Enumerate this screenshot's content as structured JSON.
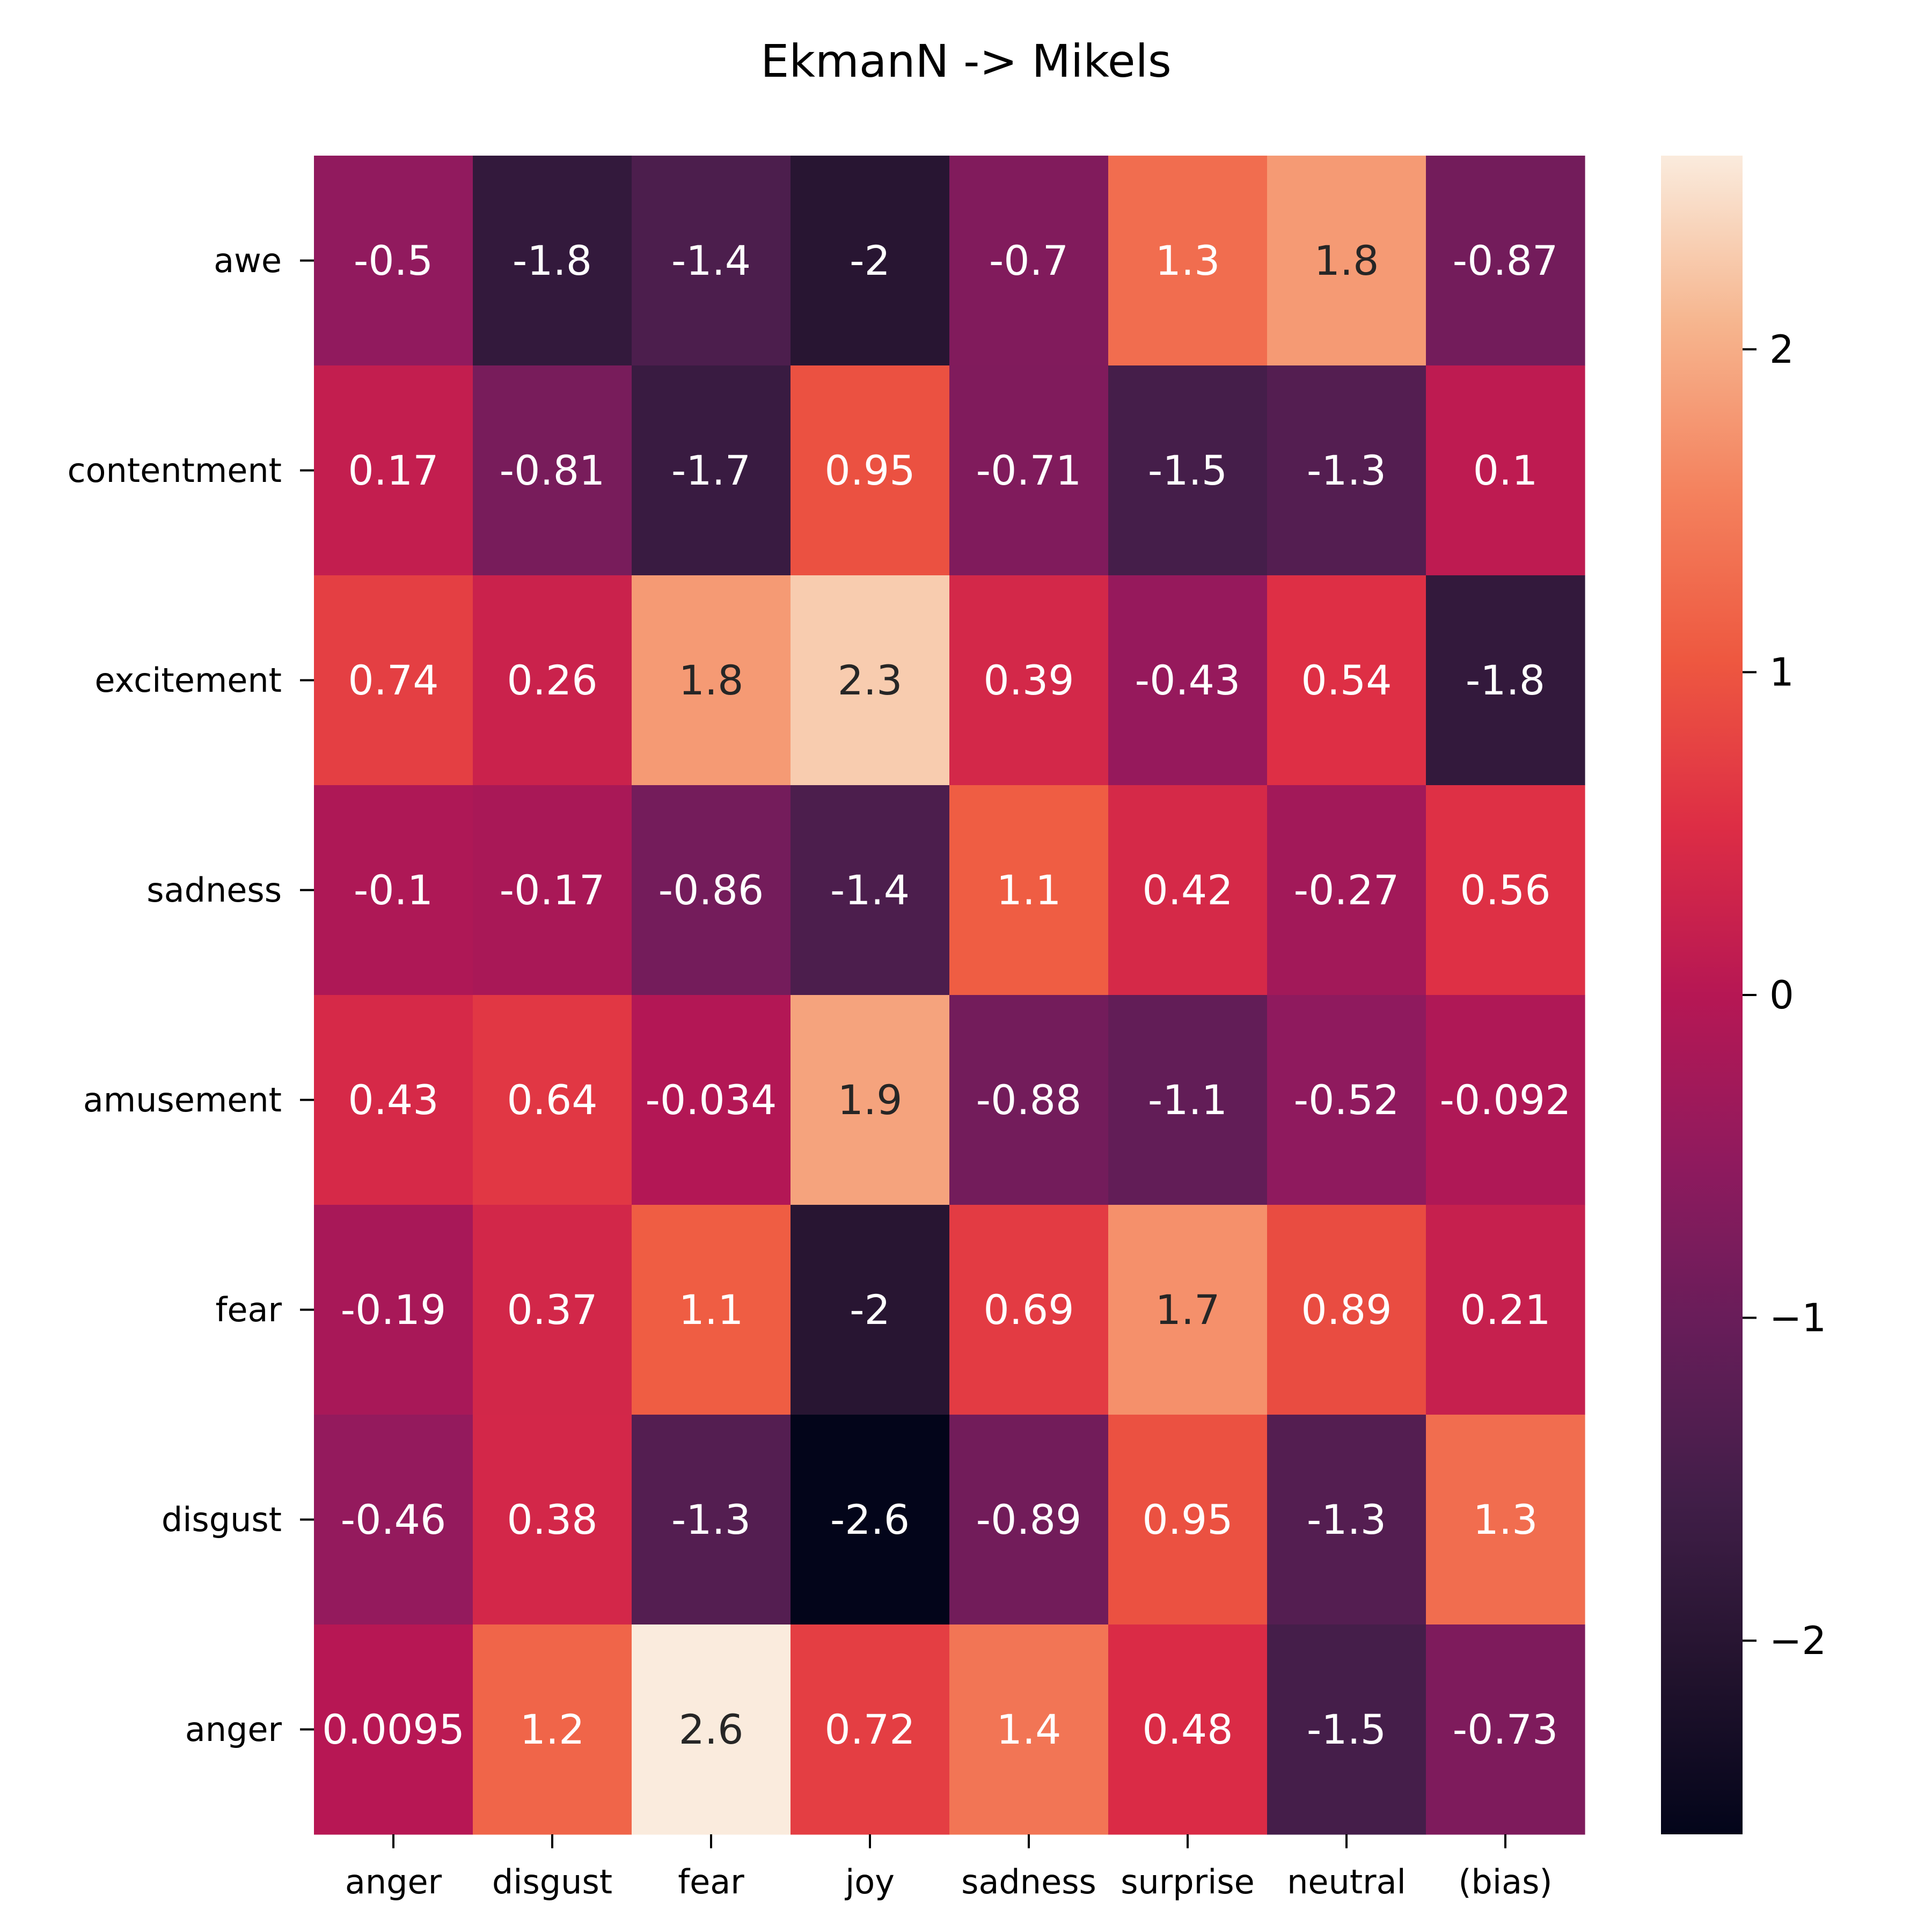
{
  "chart_data": {
    "type": "heatmap",
    "title": "EkmanN -> Mikels",
    "x_categories": [
      "anger",
      "disgust",
      "fear",
      "joy",
      "sadness",
      "surprise",
      "neutral",
      "(bias)"
    ],
    "y_categories": [
      "awe",
      "contentment",
      "excitement",
      "sadness",
      "amusement",
      "fear",
      "disgust",
      "anger"
    ],
    "values": [
      [
        -0.5,
        -1.8,
        -1.4,
        -2,
        -0.7,
        1.3,
        1.8,
        -0.87
      ],
      [
        0.17,
        -0.81,
        -1.7,
        0.95,
        -0.71,
        -1.5,
        -1.3,
        0.1
      ],
      [
        0.74,
        0.26,
        1.8,
        2.3,
        0.39,
        -0.43,
        0.54,
        -1.8
      ],
      [
        -0.1,
        -0.17,
        -0.86,
        -1.4,
        1.1,
        0.42,
        -0.27,
        0.56
      ],
      [
        0.43,
        0.64,
        -0.034,
        1.9,
        -0.88,
        -1.1,
        -0.52,
        -0.092
      ],
      [
        -0.19,
        0.37,
        1.1,
        -2,
        0.69,
        1.7,
        0.89,
        0.21
      ],
      [
        -0.46,
        0.38,
        -1.3,
        -2.6,
        -0.89,
        0.95,
        -1.3,
        1.3
      ],
      [
        0.0095,
        1.2,
        2.6,
        0.72,
        1.4,
        0.48,
        -1.5,
        -0.73
      ]
    ],
    "cell_labels": [
      [
        "-0.5",
        "-1.8",
        "-1.4",
        "-2",
        "-0.7",
        "1.3",
        "1.8",
        "-0.87"
      ],
      [
        "0.17",
        "-0.81",
        "-1.7",
        "0.95",
        "-0.71",
        "-1.5",
        "-1.3",
        "0.1"
      ],
      [
        "0.74",
        "0.26",
        "1.8",
        "2.3",
        "0.39",
        "-0.43",
        "0.54",
        "-1.8"
      ],
      [
        "-0.1",
        "-0.17",
        "-0.86",
        "-1.4",
        "1.1",
        "0.42",
        "-0.27",
        "0.56"
      ],
      [
        "0.43",
        "0.64",
        "-0.034",
        "1.9",
        "-0.88",
        "-1.1",
        "-0.52",
        "-0.092"
      ],
      [
        "-0.19",
        "0.37",
        "1.1",
        "-2",
        "0.69",
        "1.7",
        "0.89",
        "0.21"
      ],
      [
        "-0.46",
        "0.38",
        "-1.3",
        "-2.6",
        "-0.89",
        "0.95",
        "-1.3",
        "1.3"
      ],
      [
        "0.0095",
        "1.2",
        "2.6",
        "0.72",
        "1.4",
        "0.48",
        "-1.5",
        "-0.73"
      ]
    ],
    "colormap": "rocket",
    "vmin": -2.6,
    "vmax": 2.6,
    "colorbar": {
      "ticks": [
        2,
        1,
        0,
        -1,
        -2
      ],
      "tick_labels": [
        "2",
        "1",
        "0",
        "−1",
        "−2"
      ]
    },
    "grid": false,
    "legend": "colorbar-right"
  }
}
